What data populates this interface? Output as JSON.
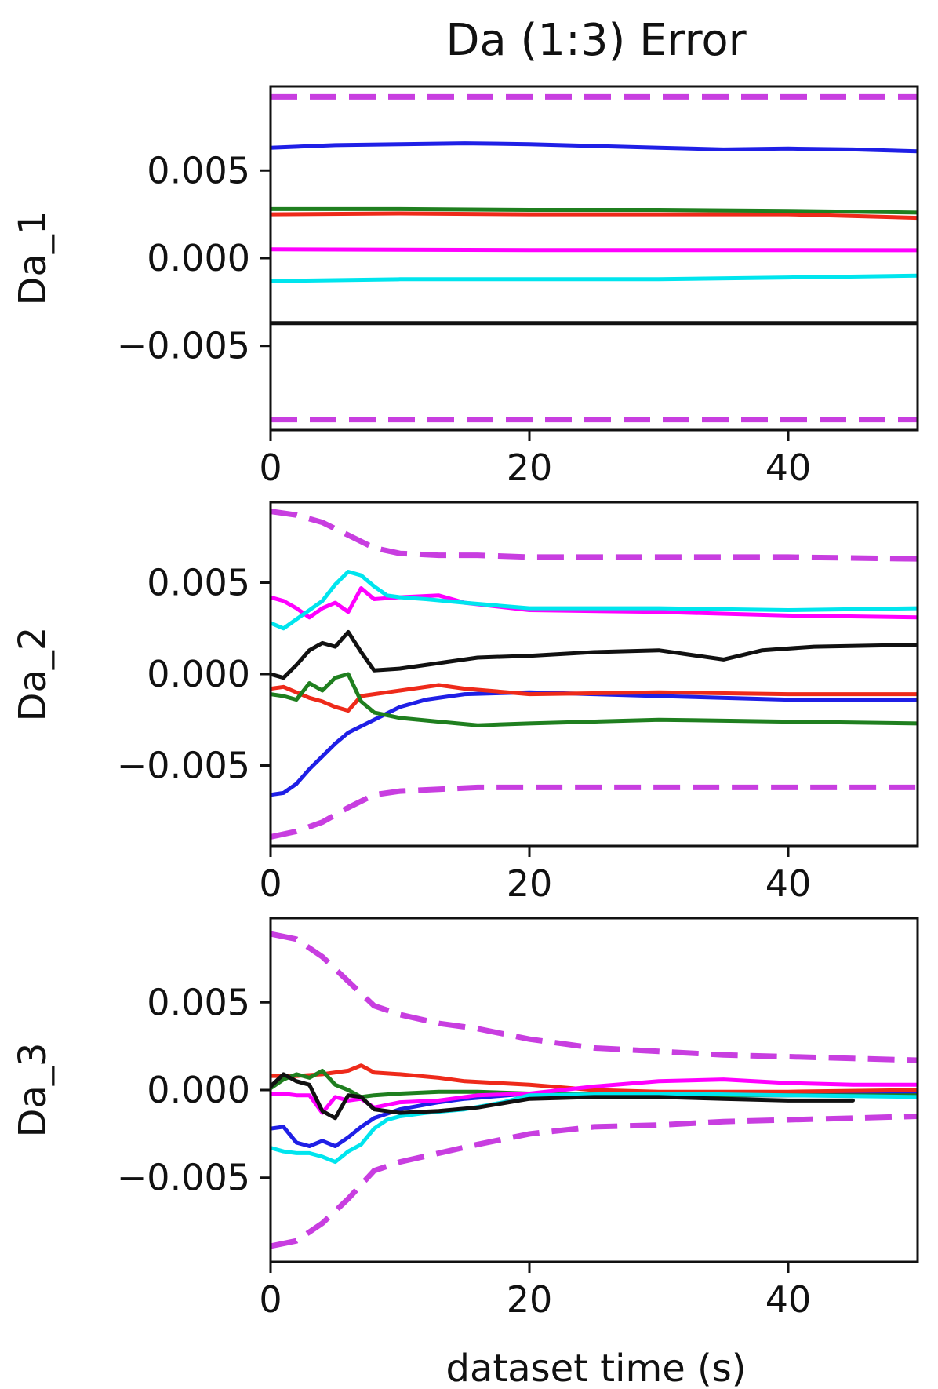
{
  "chart_data": {
    "type": "line",
    "title": "Da (1:3) Error",
    "xlabel": "dataset time (s)",
    "xlim": [
      0,
      50
    ],
    "x_ticks": [
      "0",
      "20",
      "40"
    ],
    "x_tick_values": [
      0,
      20,
      40
    ],
    "series_colors": {
      "blue": "#1f1fe6",
      "red": "#ee2a1a",
      "green": "#1f7f1f",
      "magenta": "#ff00ff",
      "cyan": "#00e5ee",
      "black": "#111111",
      "bound": "#c83ee0"
    },
    "panels": [
      {
        "ylabel": "Da_1",
        "ylim": [
          -0.0098,
          0.0098
        ],
        "y_ticks": [
          "0.005",
          "0.000",
          "−0.005"
        ],
        "y_tick_values": [
          0.005,
          0.0,
          -0.005
        ],
        "series": [
          {
            "color": "blue",
            "x": [
              0,
              5,
              10,
              15,
              20,
              25,
              30,
              35,
              40,
              45,
              50
            ],
            "y": [
              0.0063,
              0.00645,
              0.0065,
              0.00655,
              0.0065,
              0.0064,
              0.0063,
              0.0062,
              0.00625,
              0.0062,
              0.0061
            ]
          },
          {
            "color": "red",
            "x": [
              0,
              10,
              20,
              30,
              40,
              50
            ],
            "y": [
              0.0025,
              0.00255,
              0.0025,
              0.0025,
              0.0025,
              0.0023
            ]
          },
          {
            "color": "green",
            "x": [
              0,
              10,
              20,
              30,
              40,
              50
            ],
            "y": [
              0.0028,
              0.0028,
              0.00275,
              0.00275,
              0.0027,
              0.0026
            ]
          },
          {
            "color": "magenta",
            "x": [
              0,
              10,
              20,
              30,
              40,
              50
            ],
            "y": [
              0.0005,
              0.00048,
              0.00046,
              0.00046,
              0.00046,
              0.00045
            ]
          },
          {
            "color": "cyan",
            "x": [
              0,
              10,
              20,
              30,
              40,
              50
            ],
            "y": [
              -0.0013,
              -0.0012,
              -0.0012,
              -0.0012,
              -0.0011,
              -0.001
            ]
          },
          {
            "color": "black",
            "x": [
              0,
              10,
              20,
              30,
              40,
              50
            ],
            "y": [
              -0.0037,
              -0.0037,
              -0.0037,
              -0.0037,
              -0.0037,
              -0.0037
            ]
          }
        ],
        "bounds": [
          {
            "x": [
              0,
              50
            ],
            "y": [
              0.0092,
              0.0092
            ]
          },
          {
            "x": [
              0,
              50
            ],
            "y": [
              -0.0092,
              -0.0092
            ]
          }
        ]
      },
      {
        "ylabel": "Da_2",
        "ylim": [
          -0.0094,
          0.0094
        ],
        "y_ticks": [
          "0.005",
          "0.000",
          "−0.005"
        ],
        "y_tick_values": [
          0.005,
          0.0,
          -0.005
        ],
        "series": [
          {
            "color": "blue",
            "x": [
              0,
              1,
              2,
              3,
              4,
              5,
              6,
              8,
              10,
              12,
              15,
              20,
              25,
              30,
              40,
              50
            ],
            "y": [
              -0.0066,
              -0.0065,
              -0.006,
              -0.0052,
              -0.0045,
              -0.0038,
              -0.0032,
              -0.0025,
              -0.0018,
              -0.0014,
              -0.0011,
              -0.001,
              -0.0011,
              -0.0012,
              -0.0014,
              -0.0014
            ]
          },
          {
            "color": "red",
            "x": [
              0,
              1,
              2,
              3,
              4,
              5,
              6,
              7,
              8,
              10,
              13,
              15,
              20,
              30,
              40,
              50
            ],
            "y": [
              -0.0008,
              -0.0007,
              -0.001,
              -0.0013,
              -0.0015,
              -0.0018,
              -0.002,
              -0.0012,
              -0.0011,
              -0.0009,
              -0.0006,
              -0.0008,
              -0.0011,
              -0.001,
              -0.0011,
              -0.0011
            ]
          },
          {
            "color": "green",
            "x": [
              0,
              1,
              2,
              3,
              4,
              5,
              6,
              7,
              8,
              10,
              13,
              16,
              20,
              30,
              40,
              50
            ],
            "y": [
              -0.0011,
              -0.0012,
              -0.0014,
              -0.0005,
              -0.0009,
              -0.0002,
              0.0,
              -0.0015,
              -0.0021,
              -0.0024,
              -0.0026,
              -0.0028,
              -0.0027,
              -0.0025,
              -0.0026,
              -0.0027
            ]
          },
          {
            "color": "magenta",
            "x": [
              0,
              1,
              2,
              3,
              4,
              5,
              6,
              7,
              8,
              10,
              13,
              15,
              20,
              30,
              40,
              50
            ],
            "y": [
              0.0042,
              0.004,
              0.0036,
              0.0031,
              0.0036,
              0.0039,
              0.0034,
              0.0047,
              0.0041,
              0.0042,
              0.0043,
              0.0039,
              0.0035,
              0.0034,
              0.0032,
              0.0031
            ]
          },
          {
            "color": "cyan",
            "x": [
              0,
              1,
              2,
              3,
              4,
              5,
              6,
              7,
              8,
              9,
              10,
              12,
              15,
              20,
              30,
              40,
              50
            ],
            "y": [
              0.0028,
              0.0025,
              0.003,
              0.0035,
              0.004,
              0.0049,
              0.0056,
              0.0054,
              0.0048,
              0.0043,
              0.0042,
              0.0041,
              0.0039,
              0.0036,
              0.0036,
              0.0035,
              0.0036
            ]
          },
          {
            "color": "black",
            "x": [
              0,
              1,
              2,
              3,
              4,
              5,
              6,
              7,
              8,
              10,
              13,
              16,
              20,
              25,
              30,
              35,
              38,
              42,
              50
            ],
            "y": [
              0.0,
              -0.0002,
              0.0005,
              0.0013,
              0.0017,
              0.0015,
              0.0023,
              0.0012,
              0.0002,
              0.0003,
              0.0006,
              0.0009,
              0.001,
              0.0012,
              0.0013,
              0.0008,
              0.0013,
              0.0015,
              0.0016
            ]
          }
        ],
        "bounds": [
          {
            "x": [
              0,
              2,
              4,
              6,
              8,
              10,
              13,
              16,
              20,
              30,
              40,
              50
            ],
            "y": [
              0.0089,
              0.0087,
              0.0083,
              0.0076,
              0.0069,
              0.0066,
              0.0065,
              0.0065,
              0.0064,
              0.0064,
              0.0064,
              0.0063
            ]
          },
          {
            "x": [
              0,
              2,
              4,
              6,
              8,
              10,
              13,
              16,
              20,
              30,
              40,
              50
            ],
            "y": [
              -0.0089,
              -0.0086,
              -0.0081,
              -0.0073,
              -0.0066,
              -0.0064,
              -0.0063,
              -0.0062,
              -0.0062,
              -0.0062,
              -0.0062,
              -0.0062
            ]
          }
        ]
      },
      {
        "ylabel": "Da_3",
        "ylim": [
          -0.0098,
          0.0098
        ],
        "y_ticks": [
          "0.005",
          "0.000",
          "−0.005"
        ],
        "y_tick_values": [
          0.005,
          0.0,
          -0.005
        ],
        "series": [
          {
            "color": "blue",
            "x": [
              0,
              1,
              2,
              3,
              4,
              5,
              6,
              7,
              8,
              10,
              13,
              15,
              20,
              30,
              40,
              50
            ],
            "y": [
              -0.0022,
              -0.0021,
              -0.003,
              -0.0032,
              -0.0029,
              -0.0032,
              -0.0027,
              -0.0021,
              -0.0016,
              -0.0011,
              -0.0007,
              -0.0005,
              -0.0002,
              -0.0003,
              -0.0003,
              -0.0002
            ]
          },
          {
            "color": "red",
            "x": [
              0,
              2,
              4,
              6,
              7,
              8,
              10,
              13,
              15,
              20,
              25,
              30,
              40,
              50
            ],
            "y": [
              0.0008,
              0.0008,
              0.0009,
              0.0011,
              0.0014,
              0.001,
              0.0009,
              0.0007,
              0.0005,
              0.0003,
              0.0,
              -0.0001,
              -0.0001,
              0.0
            ]
          },
          {
            "color": "green",
            "x": [
              0,
              1,
              2,
              3,
              4,
              5,
              6,
              7,
              8,
              10,
              13,
              16,
              20,
              30,
              40,
              50
            ],
            "y": [
              0.0001,
              0.0006,
              0.0009,
              0.0007,
              0.0011,
              0.0003,
              0.0,
              -0.0004,
              -0.0003,
              -0.0002,
              -0.0001,
              -0.0001,
              -0.0002,
              -0.0003,
              -0.0003,
              -0.0003
            ]
          },
          {
            "color": "magenta",
            "x": [
              0,
              1,
              2,
              3,
              4,
              5,
              6,
              7,
              8,
              10,
              13,
              16,
              20,
              25,
              30,
              35,
              40,
              45,
              50
            ],
            "y": [
              -0.0002,
              -0.0002,
              -0.0003,
              -0.0003,
              -0.0013,
              -0.0004,
              -0.0006,
              -0.0005,
              -0.001,
              -0.0007,
              -0.0006,
              -0.0003,
              -0.0002,
              0.0002,
              0.0005,
              0.0006,
              0.0004,
              0.0003,
              0.0003
            ]
          },
          {
            "color": "cyan",
            "x": [
              0,
              1,
              2,
              3,
              4,
              5,
              6,
              7,
              8,
              9,
              10,
              12,
              15,
              18,
              20,
              30,
              40,
              50
            ],
            "y": [
              -0.0033,
              -0.0035,
              -0.0036,
              -0.0036,
              -0.0038,
              -0.0041,
              -0.0035,
              -0.0031,
              -0.0022,
              -0.0017,
              -0.0015,
              -0.0013,
              -0.0011,
              -0.0007,
              -0.0003,
              -0.0002,
              -0.0003,
              -0.0004
            ]
          },
          {
            "color": "black",
            "x": [
              0,
              1,
              2,
              3,
              4,
              5,
              6,
              7,
              8,
              10,
              13,
              16,
              20,
              25,
              30,
              35,
              40,
              45
            ],
            "y": [
              0.0002,
              0.0009,
              0.0005,
              0.0003,
              -0.0012,
              -0.0016,
              -0.0003,
              -0.0004,
              -0.0011,
              -0.0013,
              -0.0012,
              -0.001,
              -0.0005,
              -0.0004,
              -0.0004,
              -0.0005,
              -0.0006,
              -0.0006
            ]
          }
        ],
        "bounds": [
          {
            "x": [
              0,
              2,
              4,
              6,
              8,
              10,
              13,
              16,
              20,
              25,
              30,
              35,
              40,
              45,
              50
            ],
            "y": [
              0.0089,
              0.0086,
              0.0076,
              0.0062,
              0.0048,
              0.0043,
              0.0038,
              0.0035,
              0.0029,
              0.0024,
              0.0022,
              0.002,
              0.0019,
              0.0018,
              0.0017
            ]
          },
          {
            "x": [
              0,
              2,
              4,
              6,
              8,
              10,
              13,
              16,
              20,
              25,
              30,
              35,
              40,
              45,
              50
            ],
            "y": [
              -0.0089,
              -0.0086,
              -0.0076,
              -0.0062,
              -0.0046,
              -0.0041,
              -0.0036,
              -0.0031,
              -0.0025,
              -0.0021,
              -0.002,
              -0.0018,
              -0.0017,
              -0.0016,
              -0.0015
            ]
          }
        ]
      }
    ]
  }
}
